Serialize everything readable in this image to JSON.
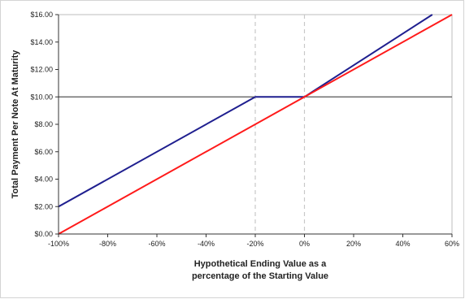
{
  "chart_data": {
    "type": "line",
    "title": "",
    "xlabel_lines": [
      "Hypothetical Ending Value as a",
      "percentage of the Starting Value"
    ],
    "ylabel": "Total Payment Per Note At Maturity",
    "xlim": [
      -100,
      60
    ],
    "ylim": [
      0,
      16
    ],
    "x_ticks": [
      -100,
      -80,
      -60,
      -40,
      -20,
      0,
      20,
      40,
      60
    ],
    "x_tick_labels": [
      "-100%",
      "-80%",
      "-60%",
      "-40%",
      "-20%",
      "0%",
      "20%",
      "40%",
      "60%"
    ],
    "y_ticks": [
      0,
      2,
      4,
      6,
      8,
      10,
      12,
      14,
      16
    ],
    "y_tick_labels": [
      "$0.00",
      "$2.00",
      "$4.00",
      "$6.00",
      "$8.00",
      "$10.00",
      "$12.00",
      "$14.00",
      "$16.00"
    ],
    "grid": false,
    "legend": "none",
    "reference_lines": {
      "horizontal_y": 10,
      "horizontal_color": "#555555",
      "vertical_x": [
        -20,
        0
      ],
      "vertical_color": "#c8c8c8"
    },
    "series": [
      {
        "color": "#1f1f8f",
        "x": [
          -100,
          -20,
          0,
          52
        ],
        "y": [
          2,
          10,
          10,
          16
        ]
      },
      {
        "color": "#ff1a1a",
        "x": [
          -100,
          60
        ],
        "y": [
          0,
          16
        ]
      }
    ]
  }
}
